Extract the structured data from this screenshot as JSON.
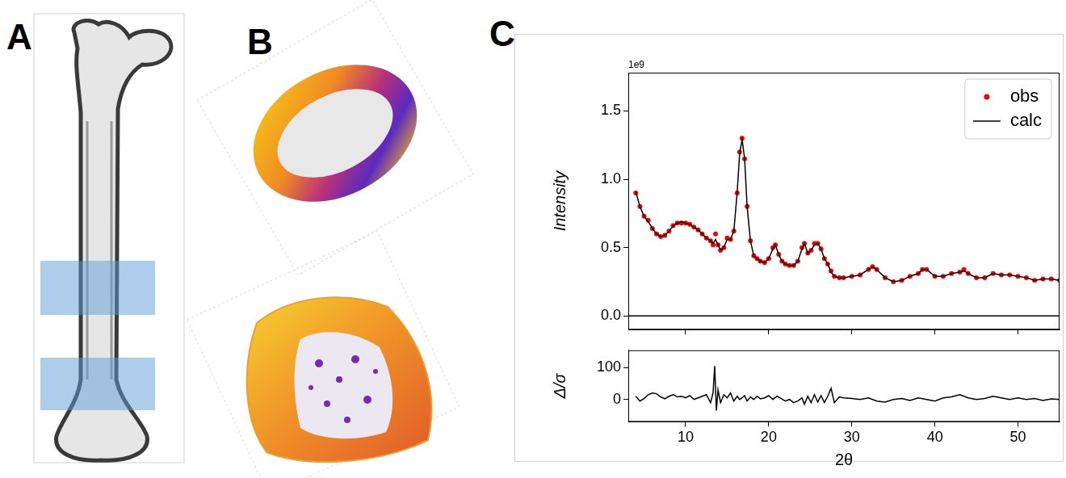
{
  "panel_labels": [
    "A",
    "B",
    "C"
  ],
  "chart_data": [
    {
      "type": "line",
      "ylabel": "Intensity",
      "annotations": [
        "1e9"
      ],
      "legend": "upper right",
      "grid": false,
      "tick_labels": "y",
      "xlim": [
        3.1,
        55
      ],
      "xticks": [
        10,
        20,
        30,
        40,
        50
      ],
      "ylim": [
        -0.1,
        1.78
      ],
      "yticks": [
        {
          "value": 0,
          "label": "0.0"
        },
        0.5,
        {
          "value": 1,
          "label": "1.0"
        },
        1.5
      ],
      "x": [
        4,
        4.5,
        5,
        5.5,
        6,
        6.5,
        7,
        7.5,
        8,
        8.5,
        9,
        9.5,
        10,
        10.5,
        11,
        11.5,
        12,
        12.5,
        13,
        13.3,
        13.6,
        13.9,
        14.2,
        14.6,
        15,
        15.4,
        15.8,
        16.2,
        16.5,
        16.8,
        17.1,
        17.4,
        17.8,
        18.2,
        18.6,
        19,
        19.5,
        20,
        20.5,
        20.8,
        21.2,
        21.6,
        22,
        22.5,
        23,
        23.5,
        24,
        24.3,
        24.7,
        25.1,
        25.5,
        25.9,
        26.3,
        26.7,
        27.1,
        27.5,
        27.9,
        28.5,
        29,
        30,
        31,
        32,
        32.5,
        33,
        34,
        35,
        36,
        37,
        38,
        38.5,
        39,
        40,
        41,
        42,
        43,
        43.5,
        44,
        45,
        46,
        47,
        48,
        49,
        50,
        51,
        52,
        53,
        54,
        55
      ],
      "series": [
        {
          "name": "obs",
          "type": "scatter",
          "marker": "circle",
          "color": "#ff0000",
          "values": [
            0.9,
            0.8,
            0.73,
            0.7,
            0.64,
            0.6,
            0.58,
            0.59,
            0.62,
            0.66,
            0.68,
            0.68,
            0.68,
            0.67,
            0.65,
            0.63,
            0.6,
            0.57,
            0.55,
            0.52,
            0.6,
            0.52,
            0.48,
            0.5,
            0.57,
            0.56,
            0.62,
            0.9,
            1.2,
            1.3,
            1.15,
            0.8,
            0.55,
            0.44,
            0.42,
            0.4,
            0.39,
            0.42,
            0.5,
            0.52,
            0.45,
            0.4,
            0.38,
            0.37,
            0.37,
            0.4,
            0.5,
            0.53,
            0.46,
            0.48,
            0.53,
            0.53,
            0.49,
            0.42,
            0.38,
            0.33,
            0.29,
            0.28,
            0.28,
            0.29,
            0.3,
            0.34,
            0.36,
            0.34,
            0.28,
            0.25,
            0.26,
            0.29,
            0.31,
            0.34,
            0.34,
            0.29,
            0.29,
            0.31,
            0.32,
            0.34,
            0.31,
            0.28,
            0.28,
            0.31,
            0.3,
            0.3,
            0.29,
            0.28,
            0.26,
            0.27,
            0.27,
            0.26
          ]
        },
        {
          "name": "calc",
          "type": "line",
          "line_style": "solid",
          "color": "#000000",
          "values": [
            0.91,
            0.8,
            0.73,
            0.69,
            0.64,
            0.6,
            0.58,
            0.59,
            0.62,
            0.66,
            0.68,
            0.69,
            0.68,
            0.67,
            0.65,
            0.63,
            0.6,
            0.57,
            0.55,
            0.53,
            0.56,
            0.52,
            0.48,
            0.5,
            0.56,
            0.56,
            0.62,
            0.9,
            1.19,
            1.29,
            1.15,
            0.8,
            0.55,
            0.44,
            0.42,
            0.4,
            0.39,
            0.42,
            0.49,
            0.52,
            0.45,
            0.4,
            0.38,
            0.37,
            0.37,
            0.4,
            0.49,
            0.53,
            0.46,
            0.48,
            0.52,
            0.53,
            0.49,
            0.42,
            0.38,
            0.32,
            0.29,
            0.28,
            0.28,
            0.29,
            0.3,
            0.34,
            0.36,
            0.34,
            0.28,
            0.25,
            0.26,
            0.29,
            0.31,
            0.34,
            0.34,
            0.29,
            0.29,
            0.31,
            0.32,
            0.33,
            0.31,
            0.28,
            0.28,
            0.31,
            0.3,
            0.3,
            0.29,
            0.28,
            0.26,
            0.27,
            0.27,
            0.26
          ]
        }
      ]
    },
    {
      "type": "line",
      "xlabel": "2θ",
      "ylabel": "Δ/σ",
      "grid": false,
      "color": "#000000",
      "xlim": [
        3.1,
        55
      ],
      "xticks": [
        10,
        20,
        30,
        40,
        50
      ],
      "ylim": [
        -70,
        154
      ],
      "yticks": [
        0,
        100
      ],
      "x": [
        4,
        4.5,
        5,
        5.5,
        6,
        6.5,
        7,
        7.5,
        8,
        8.5,
        9,
        9.5,
        10,
        10.5,
        11,
        11.5,
        12,
        12.5,
        13,
        13.3,
        13.5,
        13.7,
        13.9,
        14.2,
        14.6,
        15,
        15.4,
        15.8,
        16.2,
        16.5,
        16.8,
        17.1,
        17.4,
        17.8,
        18.2,
        18.6,
        19,
        19.5,
        20,
        20.5,
        21,
        21.5,
        22,
        22.5,
        23,
        23.5,
        24,
        24.3,
        24.7,
        25.1,
        25.5,
        25.9,
        26.3,
        26.7,
        27.1,
        27.5,
        27.9,
        28.5,
        29,
        30,
        31,
        32,
        33,
        34,
        35,
        36,
        37,
        38,
        39,
        40,
        41,
        42,
        43,
        44,
        45,
        46,
        47,
        48,
        49,
        50,
        51,
        52,
        53,
        54,
        55
      ],
      "values": [
        10,
        -5,
        3,
        15,
        20,
        18,
        8,
        2,
        10,
        15,
        8,
        10,
        5,
        12,
        0,
        5,
        10,
        15,
        -10,
        20,
        105,
        -35,
        30,
        -10,
        15,
        5,
        20,
        -5,
        10,
        0,
        5,
        12,
        -5,
        8,
        0,
        10,
        2,
        5,
        12,
        0,
        10,
        3,
        -5,
        0,
        -10,
        -5,
        5,
        -15,
        10,
        -10,
        15,
        -8,
        12,
        -10,
        10,
        35,
        -10,
        8,
        5,
        3,
        0,
        5,
        -5,
        -8,
        0,
        3,
        -3,
        5,
        0,
        -5,
        5,
        8,
        15,
        5,
        0,
        3,
        10,
        5,
        0,
        5,
        0,
        3,
        -3,
        2,
        0
      ]
    }
  ]
}
